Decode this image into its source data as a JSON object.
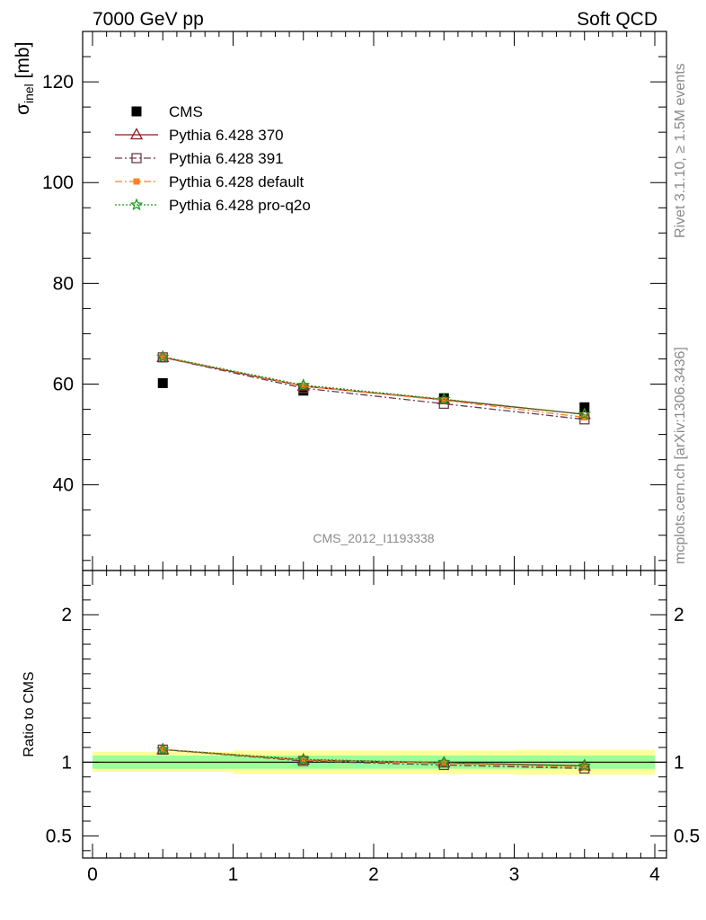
{
  "header": {
    "left": "7000 GeV pp",
    "right": "Soft QCD"
  },
  "side_text": {
    "top": "Rivet 3.1.10, ≥ 1.5M events",
    "bottom": "mcplots.cern.ch [arXiv:1306.3436]"
  },
  "analysis_label": "CMS_2012_I1193338",
  "ratio_ylabel": "Ratio to CMS",
  "colors": {
    "data": "#000000",
    "p370": "#8b1a1a",
    "p391": "#6b3a4a",
    "pdefault": "#ff7f27",
    "pq2o": "#1a9a1a",
    "band_inner": "#99ff99",
    "band_outer": "#ffff99"
  },
  "chart_data": [
    {
      "type": "scatter",
      "panel": "main",
      "ylabel": "σinel [mb]",
      "ylabel_parts": {
        "main": "σ",
        "sub": "inel",
        "unit": " [mb]"
      },
      "xlim": [
        0,
        4
      ],
      "ylim": [
        23,
        130
      ],
      "yticks": [
        40,
        60,
        80,
        100,
        120
      ],
      "legend_position": "top-left",
      "series": [
        {
          "key": "data",
          "name": "CMS",
          "x": [
            0.5,
            1.5,
            2.5,
            3.5
          ],
          "y": [
            60.2,
            58.7,
            57.2,
            55.4
          ],
          "marker": "square-filled",
          "line": "none"
        },
        {
          "key": "p370",
          "name": "Pythia 6.428 370",
          "x": [
            0.5,
            1.5,
            2.5,
            3.5
          ],
          "y": [
            65.3,
            59.6,
            56.9,
            54.0
          ],
          "marker": "triangle-open",
          "line": "solid"
        },
        {
          "key": "p391",
          "name": "Pythia 6.428 391",
          "x": [
            0.5,
            1.5,
            2.5,
            3.5
          ],
          "y": [
            65.3,
            59.2,
            56.1,
            53.0
          ],
          "marker": "square-open",
          "line": "dashdot"
        },
        {
          "key": "pdefault",
          "name": "Pythia 6.428 default",
          "x": [
            0.5,
            1.5,
            2.5,
            3.5
          ],
          "y": [
            65.4,
            59.6,
            56.8,
            53.4
          ],
          "marker": "square-filled-small",
          "line": "dashdot"
        },
        {
          "key": "pq2o",
          "name": "Pythia 6.428 pro-q2o",
          "x": [
            0.5,
            1.5,
            2.5,
            3.5
          ],
          "y": [
            65.4,
            59.8,
            57.0,
            54.0
          ],
          "marker": "star-open",
          "line": "dotted"
        }
      ]
    },
    {
      "type": "line",
      "panel": "ratio",
      "ylabel": "Ratio to CMS",
      "xlim": [
        0,
        4
      ],
      "ylim": [
        0.35,
        2.3
      ],
      "xticks": [
        0,
        1,
        2,
        3,
        4
      ],
      "yticks": [
        0.5,
        1,
        2
      ],
      "bands": [
        {
          "x": [
            0,
            1
          ],
          "inner": [
            0.955,
            1.045
          ],
          "outer": [
            0.935,
            1.07
          ]
        },
        {
          "x": [
            1,
            2
          ],
          "inner": [
            0.955,
            1.045
          ],
          "outer": [
            0.92,
            1.08
          ]
        },
        {
          "x": [
            2,
            3
          ],
          "inner": [
            0.955,
            1.045
          ],
          "outer": [
            0.92,
            1.08
          ]
        },
        {
          "x": [
            3,
            4
          ],
          "inner": [
            0.955,
            1.045
          ],
          "outer": [
            0.915,
            1.085
          ]
        }
      ],
      "series": [
        {
          "key": "p370",
          "name": "Pythia 6.428 370",
          "x": [
            0.5,
            1.5,
            2.5,
            3.5
          ],
          "y": [
            1.085,
            1.015,
            0.995,
            0.975
          ],
          "marker": "triangle-open",
          "line": "solid"
        },
        {
          "key": "p391",
          "name": "Pythia 6.428 391",
          "x": [
            0.5,
            1.5,
            2.5,
            3.5
          ],
          "y": [
            1.085,
            1.008,
            0.981,
            0.957
          ],
          "marker": "square-open",
          "line": "dashdot"
        },
        {
          "key": "pdefault",
          "name": "Pythia 6.428 default",
          "x": [
            0.5,
            1.5,
            2.5,
            3.5
          ],
          "y": [
            1.086,
            1.015,
            0.993,
            0.964
          ],
          "marker": "square-filled-small",
          "line": "dashdot"
        },
        {
          "key": "pq2o",
          "name": "Pythia 6.428 pro-q2o",
          "x": [
            0.5,
            1.5,
            2.5,
            3.5
          ],
          "y": [
            1.086,
            1.019,
            0.997,
            0.975
          ],
          "marker": "star-open",
          "line": "dotted"
        }
      ]
    }
  ]
}
